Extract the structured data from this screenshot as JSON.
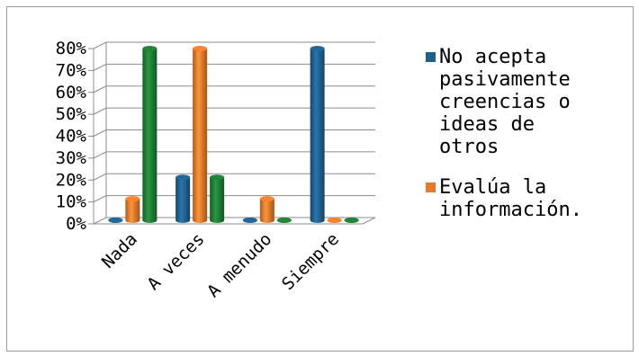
{
  "chart_data": {
    "type": "bar",
    "categories": [
      "Nada",
      "A veces",
      "A menudo",
      "Siempre"
    ],
    "series": [
      {
        "name": "No acepta pasivamente creencias o ideas de otros",
        "values": [
          0,
          20,
          0,
          80
        ],
        "color": "#1f5f8b"
      },
      {
        "name": "Evalúa la información.",
        "values": [
          10,
          80,
          10,
          0
        ],
        "color": "#e8782a"
      },
      {
        "name": "",
        "values": [
          80,
          20,
          0,
          0
        ],
        "color": "#1f7a34"
      }
    ],
    "y_ticks": [
      "0%",
      "10%",
      "20%",
      "30%",
      "40%",
      "50%",
      "60%",
      "70%",
      "80%"
    ],
    "ylim": [
      0,
      80
    ],
    "legend": {
      "position": "right",
      "entries": [
        {
          "lines": [
            "No acepta",
            "pasivamente",
            "creencias o",
            "ideas de",
            "otros"
          ]
        },
        {
          "lines": [
            "Evalúa la",
            "información."
          ]
        }
      ]
    },
    "grid": true,
    "style": "3d-cylinder"
  }
}
